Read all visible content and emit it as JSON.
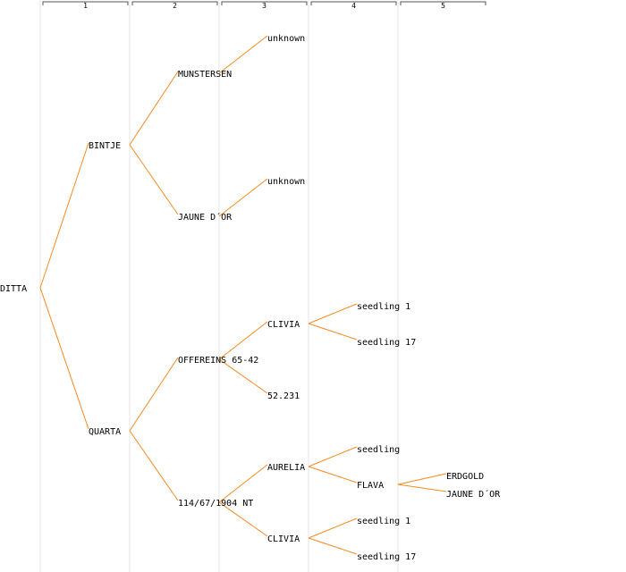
{
  "generations": [
    "1",
    "2",
    "3",
    "4",
    "5"
  ],
  "colors": {
    "edge": "#f58a1e",
    "gridline": "#e6e6e6",
    "bracket": "#555555",
    "text": "#000000"
  },
  "root": {
    "label": "DITTA",
    "children": [
      {
        "label": "BINTJE",
        "children": [
          {
            "label": "MUNSTERSEN",
            "children": [
              {
                "label": "unknown"
              }
            ]
          },
          {
            "label": "JAUNE D´OR",
            "children": [
              {
                "label": "unknown"
              }
            ]
          }
        ]
      },
      {
        "label": "QUARTA",
        "children": [
          {
            "label": "OFFEREINS 65-42",
            "children": [
              {
                "label": "CLIVIA",
                "children": [
                  {
                    "label": "seedling 1"
                  },
                  {
                    "label": "seedling 17"
                  }
                ]
              },
              {
                "label": "52.231"
              }
            ]
          },
          {
            "label": "114/67/1904 NT",
            "children": [
              {
                "label": "AURELIA",
                "children": [
                  {
                    "label": "seedling"
                  },
                  {
                    "label": "FLAVA",
                    "children": [
                      {
                        "label": "ERDGOLD"
                      },
                      {
                        "label": "JAUNE D´OR"
                      }
                    ]
                  }
                ]
              },
              {
                "label": "CLIVIA",
                "children": [
                  {
                    "label": "seedling 1"
                  },
                  {
                    "label": "seedling 17"
                  }
                ]
              }
            ]
          }
        ]
      }
    ]
  }
}
